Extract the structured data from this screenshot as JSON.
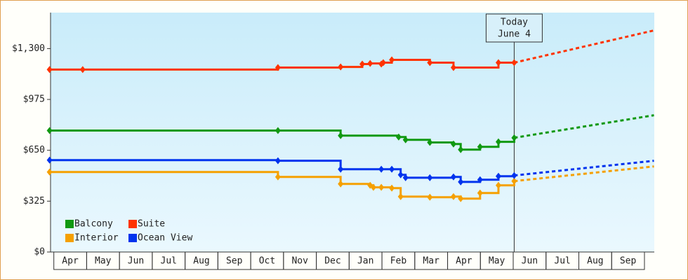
{
  "chart_data": {
    "type": "step-line",
    "xlim": [
      -0.1,
      18.3
    ],
    "ylim": [
      0,
      1530
    ],
    "xticks": [
      {
        "value": 0.5,
        "label": "Apr"
      },
      {
        "value": 1.5,
        "label": "May"
      },
      {
        "value": 2.5,
        "label": "Jun"
      },
      {
        "value": 3.5,
        "label": "Jul"
      },
      {
        "value": 4.5,
        "label": "Aug"
      },
      {
        "value": 5.5,
        "label": "Sep"
      },
      {
        "value": 6.5,
        "label": "Oct"
      },
      {
        "value": 7.5,
        "label": "Nov"
      },
      {
        "value": 8.5,
        "label": "Dec"
      },
      {
        "value": 9.5,
        "label": "Jan"
      },
      {
        "value": 10.5,
        "label": "Feb"
      },
      {
        "value": 11.5,
        "label": "Mar"
      },
      {
        "value": 12.5,
        "label": "Apr"
      },
      {
        "value": 13.5,
        "label": "May"
      },
      {
        "value": 14.5,
        "label": "Jun"
      },
      {
        "value": 15.5,
        "label": "Jul"
      },
      {
        "value": 16.5,
        "label": "Aug"
      },
      {
        "value": 17.5,
        "label": "Sep"
      }
    ],
    "yticks": [
      {
        "value": 0,
        "label": "$0"
      },
      {
        "value": 325,
        "label": "$325"
      },
      {
        "value": 650,
        "label": "$650"
      },
      {
        "value": 975,
        "label": "$975"
      },
      {
        "value": 1300,
        "label": "$1,300"
      }
    ],
    "annotation": {
      "x": 14.03,
      "lines": [
        "Today",
        "June 4"
      ]
    },
    "series": [
      {
        "name": "Balcony",
        "color": "#119911",
        "x": [
          -0.13,
          6.83,
          8.74,
          10.51,
          10.72,
          11.46,
          12.18,
          12.4,
          12.99,
          13.55,
          14.03
        ],
        "values": [
          776,
          776,
          744,
          735,
          717,
          700,
          690,
          654,
          672,
          704,
          730
        ],
        "forecast": {
          "x": [
            14.03,
            18.29
          ],
          "values": [
            730,
            874
          ]
        }
      },
      {
        "name": "Suite",
        "color": "#ff3300",
        "x": [
          -0.13,
          0.88,
          6.83,
          8.74,
          9.4,
          9.64,
          9.98,
          10.04,
          10.3,
          11.46,
          12.18,
          13.55,
          14.03
        ],
        "values": [
          1166,
          1166,
          1179,
          1183,
          1201,
          1205,
          1201,
          1210,
          1228,
          1210,
          1179,
          1210,
          1210
        ],
        "forecast": {
          "x": [
            14.03,
            18.29
          ],
          "values": [
            1210,
            1416
          ]
        }
      },
      {
        "name": "Interior",
        "color": "#f5a000",
        "x": [
          -0.13,
          6.83,
          8.74,
          9.64,
          9.74,
          9.98,
          10.3,
          10.57,
          11.46,
          12.18,
          12.4,
          12.99,
          13.55,
          14.03
        ],
        "values": [
          511,
          480,
          435,
          426,
          413,
          413,
          408,
          354,
          350,
          354,
          341,
          377,
          426,
          453
        ],
        "forecast": {
          "x": [
            14.03,
            18.29
          ],
          "values": [
            453,
            547
          ]
        }
      },
      {
        "name": "Ocean View",
        "color": "#0033ee",
        "x": [
          -0.13,
          6.83,
          8.74,
          9.98,
          10.3,
          10.57,
          10.72,
          11.46,
          12.18,
          12.4,
          12.99,
          13.55,
          14.03
        ],
        "values": [
          587,
          583,
          529,
          529,
          529,
          493,
          475,
          475,
          480,
          448,
          462,
          484,
          489
        ],
        "forecast": {
          "x": [
            14.03,
            18.29
          ],
          "values": [
            489,
            583
          ]
        }
      }
    ]
  }
}
